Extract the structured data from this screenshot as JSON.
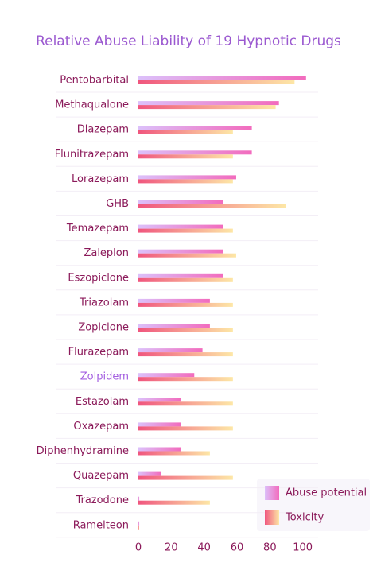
{
  "chart_data": {
    "type": "hbar",
    "title": "Relative Abuse Liability of 19 Hypnotic Drugs",
    "categories": [
      "Pentobarbital",
      "Methaqualone",
      "Diazepam",
      "Flunitrazepam",
      "Lorazepam",
      "GHB",
      "Temazepam",
      "Zaleplon",
      "Eszopiclone",
      "Triazolam",
      "Zopiclone",
      "Flurazepam",
      "Zolpidem",
      "Estazolam",
      "Oxazepam",
      "Diphenhydramine",
      "Quazepam",
      "Trazodone",
      "Ramelteon"
    ],
    "series": [
      {
        "name": "Abuse potential",
        "color": [
          "#dcc0fa",
          "#f26bbd"
        ],
        "values": [
          102,
          85.5,
          69,
          69,
          59.5,
          51.5,
          51.5,
          51.5,
          51.5,
          43.5,
          43.5,
          39,
          34,
          26,
          26,
          26,
          14,
          0.5,
          0.5
        ]
      },
      {
        "name": "Toxicity",
        "color": [
          "#f0567e",
          "#fde7a6"
        ],
        "values": [
          95,
          83.5,
          57.5,
          57.5,
          57.5,
          90,
          57.5,
          59.5,
          57.5,
          57.5,
          57.5,
          57.5,
          57.5,
          57.5,
          57.5,
          43.5,
          57.5,
          43.5,
          0.5
        ]
      }
    ],
    "xlim": [
      0,
      105
    ],
    "xticks": [
      0,
      20,
      40,
      60,
      80,
      100
    ],
    "highlight": {
      "category": 12,
      "color": "#a35ee0"
    },
    "legend": "bottom-right"
  }
}
